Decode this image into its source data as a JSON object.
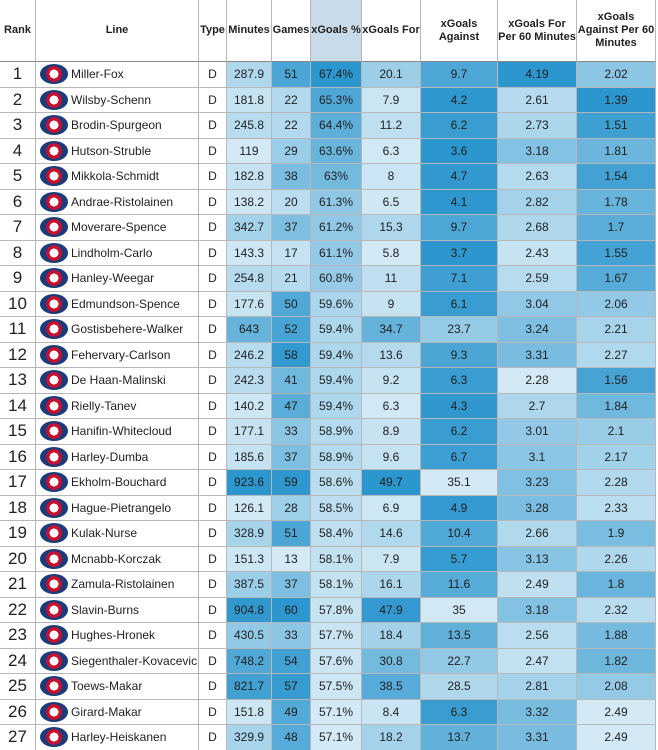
{
  "table": {
    "columns": [
      "Rank",
      "Line",
      "Type",
      "Minutes",
      "Games",
      "xGoals %",
      "xGoals For",
      "xGoals Against",
      "xGoals For Per 60 Minutes",
      "xGoals Against Per 60 Minutes"
    ],
    "rows": [
      [
        1,
        "Miller-Fox",
        "D",
        287.9,
        51,
        "67.4%",
        20.1,
        9.7,
        4.19,
        2.02
      ],
      [
        2,
        "Wilsby-Schenn",
        "D",
        181.8,
        22,
        "65.3%",
        7.9,
        4.2,
        2.61,
        1.39
      ],
      [
        3,
        "Brodin-Spurgeon",
        "D",
        245.8,
        22,
        "64.4%",
        11.2,
        6.2,
        2.73,
        1.51
      ],
      [
        4,
        "Hutson-Struble",
        "D",
        119,
        29,
        "63.6%",
        6.3,
        3.6,
        3.18,
        1.81
      ],
      [
        5,
        "Mikkola-Schmidt",
        "D",
        182.8,
        38,
        "63%",
        8,
        4.7,
        2.63,
        1.54
      ],
      [
        6,
        "Andrae-Ristolainen",
        "D",
        138.2,
        20,
        "61.3%",
        6.5,
        4.1,
        2.82,
        1.78
      ],
      [
        7,
        "Moverare-Spence",
        "D",
        342.7,
        37,
        "61.2%",
        15.3,
        9.7,
        2.68,
        1.7
      ],
      [
        8,
        "Lindholm-Carlo",
        "D",
        143.3,
        17,
        "61.1%",
        5.8,
        3.7,
        2.43,
        1.55
      ],
      [
        9,
        "Hanley-Weegar",
        "D",
        254.8,
        21,
        "60.8%",
        11,
        7.1,
        2.59,
        1.67
      ],
      [
        10,
        "Edmundson-Spence",
        "D",
        177.6,
        50,
        "59.6%",
        9,
        6.1,
        3.04,
        2.06
      ],
      [
        11,
        "Gostisbehere-Walker",
        "D",
        643,
        52,
        "59.4%",
        34.7,
        23.7,
        3.24,
        2.21
      ],
      [
        12,
        "Fehervary-Carlson",
        "D",
        246.2,
        58,
        "59.4%",
        13.6,
        9.3,
        3.31,
        2.27
      ],
      [
        13,
        "De Haan-Malinski",
        "D",
        242.3,
        41,
        "59.4%",
        9.2,
        6.3,
        2.28,
        1.56
      ],
      [
        14,
        "Rielly-Tanev",
        "D",
        140.2,
        47,
        "59.4%",
        6.3,
        4.3,
        2.7,
        1.84
      ],
      [
        15,
        "Hanifin-Whitecloud",
        "D",
        177.1,
        33,
        "58.9%",
        8.9,
        6.2,
        3.01,
        2.1
      ],
      [
        16,
        "Harley-Dumba",
        "D",
        185.6,
        37,
        "58.9%",
        9.6,
        6.7,
        3.1,
        2.17
      ],
      [
        17,
        "Ekholm-Bouchard",
        "D",
        923.6,
        59,
        "58.6%",
        49.7,
        35.1,
        3.23,
        2.28
      ],
      [
        18,
        "Hague-Pietrangelo",
        "D",
        126.1,
        28,
        "58.5%",
        6.9,
        4.9,
        3.28,
        2.33
      ],
      [
        19,
        "Kulak-Nurse",
        "D",
        328.9,
        51,
        "58.4%",
        14.6,
        10.4,
        2.66,
        1.9
      ],
      [
        20,
        "Mcnabb-Korczak",
        "D",
        151.3,
        13,
        "58.1%",
        7.9,
        5.7,
        3.13,
        2.26
      ],
      [
        21,
        "Zamula-Ristolainen",
        "D",
        387.5,
        37,
        "58.1%",
        16.1,
        11.6,
        2.49,
        1.8
      ],
      [
        22,
        "Slavin-Burns",
        "D",
        904.8,
        60,
        "57.8%",
        47.9,
        35,
        3.18,
        2.32
      ],
      [
        23,
        "Hughes-Hronek",
        "D",
        430.5,
        33,
        "57.7%",
        18.4,
        13.5,
        2.56,
        1.88
      ],
      [
        24,
        "Siegenthaler-Kovacevic",
        "D",
        748.2,
        54,
        "57.6%",
        30.8,
        22.7,
        2.47,
        1.82
      ],
      [
        25,
        "Toews-Makar",
        "D",
        821.7,
        57,
        "57.5%",
        38.5,
        28.5,
        2.81,
        2.08
      ],
      [
        26,
        "Girard-Makar",
        "D",
        151.8,
        49,
        "57.1%",
        8.4,
        6.3,
        3.32,
        2.49
      ],
      [
        27,
        "Harley-Heiskanen",
        "D",
        329.9,
        48,
        "57.1%",
        18.2,
        13.7,
        3.31,
        2.49
      ]
    ]
  }
}
